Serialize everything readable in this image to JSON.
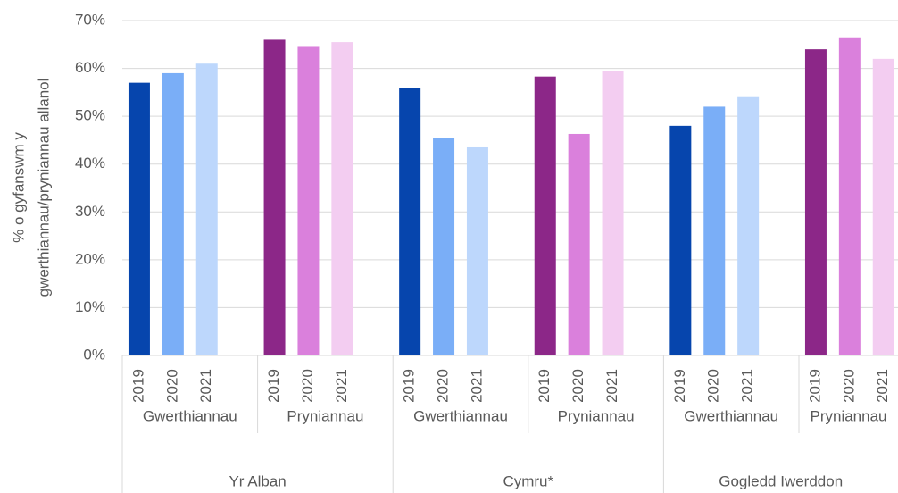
{
  "chart_data": {
    "type": "bar",
    "ylabel": [
      "% o gyfanswm y",
      "gwerthiannau/pryniannau allanol"
    ],
    "ylim": [
      0,
      70
    ],
    "yticks": [
      {
        "value": 0,
        "label": "0%"
      },
      {
        "value": 10,
        "label": "10%"
      },
      {
        "value": 20,
        "label": "20%"
      },
      {
        "value": 30,
        "label": "30%"
      },
      {
        "value": 40,
        "label": "40%"
      },
      {
        "value": 50,
        "label": "50%"
      },
      {
        "value": 60,
        "label": "60%"
      },
      {
        "value": 70,
        "label": "70%"
      }
    ],
    "grid": true,
    "groups": [
      {
        "name": "Yr Alban",
        "subgroups": [
          {
            "name": "Gwerthiannau",
            "categories": [
              "2019",
              "2020",
              "2021"
            ],
            "values": [
              57,
              59,
              61
            ],
            "colors": [
              "#0645ad",
              "#7aaef7",
              "#bdd7fc"
            ]
          },
          {
            "name": "Pryniannau",
            "categories": [
              "2019",
              "2020",
              "2021"
            ],
            "values": [
              66,
              64.5,
              65.5
            ],
            "colors": [
              "#8c2788",
              "#da80dc",
              "#f3cdf1"
            ]
          }
        ]
      },
      {
        "name": "Cymru*",
        "subgroups": [
          {
            "name": "Gwerthiannau",
            "categories": [
              "2019",
              "2020",
              "2021"
            ],
            "values": [
              56,
              45.5,
              43.5
            ],
            "colors": [
              "#0645ad",
              "#7aaef7",
              "#bdd7fc"
            ]
          },
          {
            "name": "Pryniannau",
            "categories": [
              "2019",
              "2020",
              "2021"
            ],
            "values": [
              58.3,
              46.3,
              59.5
            ],
            "colors": [
              "#8c2788",
              "#da80dc",
              "#f3cdf1"
            ]
          }
        ]
      },
      {
        "name": "Gogledd Iwerddon",
        "subgroups": [
          {
            "name": "Gwerthiannau",
            "categories": [
              "2019",
              "2020",
              "2021"
            ],
            "values": [
              48,
              52,
              54
            ],
            "colors": [
              "#0645ad",
              "#7aaef7",
              "#bdd7fc"
            ]
          },
          {
            "name": "Pryniannau",
            "categories": [
              "2019",
              "2020",
              "2021"
            ],
            "values": [
              64,
              66.5,
              62
            ],
            "colors": [
              "#8c2788",
              "#da80dc",
              "#f3cdf1"
            ]
          }
        ]
      }
    ]
  }
}
